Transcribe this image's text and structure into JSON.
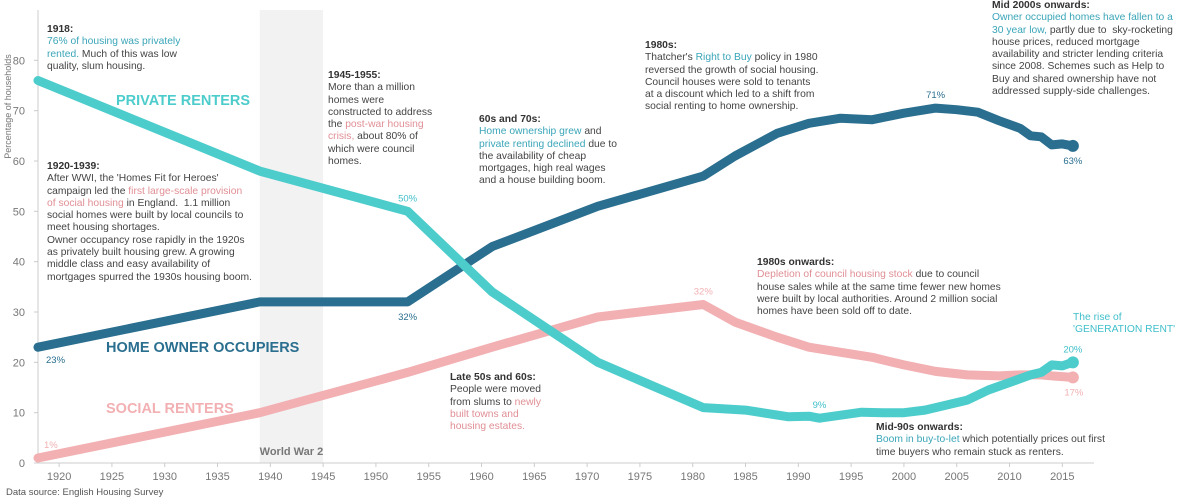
{
  "chart_data": {
    "type": "line",
    "ylabel": "Percentage of households",
    "xlim": [
      1918,
      2018
    ],
    "ylim": [
      0,
      90
    ],
    "xticks": [
      1920,
      1925,
      1930,
      1935,
      1940,
      1945,
      1950,
      1955,
      1960,
      1965,
      1970,
      1975,
      1980,
      1985,
      1990,
      1995,
      2000,
      2005,
      2010,
      2015
    ],
    "yticks": [
      0,
      10,
      20,
      30,
      40,
      50,
      60,
      70,
      80
    ],
    "shaded_period": {
      "from": 1939,
      "to": 1945,
      "label": "World War 2"
    },
    "series": [
      {
        "name": "PRIVATE RENTERS",
        "color": "#4dcccc",
        "points": [
          [
            1918,
            76
          ],
          [
            1939,
            58
          ],
          [
            1953,
            50
          ],
          [
            1961,
            34
          ],
          [
            1971,
            20
          ],
          [
            1981,
            11
          ],
          [
            1985,
            10.5
          ],
          [
            1989,
            9.2
          ],
          [
            1991,
            9.3
          ],
          [
            1992,
            8.9
          ],
          [
            1994,
            9.5
          ],
          [
            1996,
            10.1
          ],
          [
            1998,
            10
          ],
          [
            2000,
            10
          ],
          [
            2002,
            10.5
          ],
          [
            2004,
            11.5
          ],
          [
            2006,
            12.5
          ],
          [
            2008,
            14.5
          ],
          [
            2010,
            16
          ],
          [
            2012,
            17.5
          ],
          [
            2013,
            18
          ],
          [
            2014,
            19.5
          ],
          [
            2015,
            19.3
          ],
          [
            2016,
            20
          ]
        ],
        "start_label": "",
        "end_label": "20%",
        "marked": [
          {
            "x": 1953,
            "y": 50,
            "label": "50%"
          },
          {
            "x": 1992,
            "y": 8.9,
            "label": "9%"
          }
        ]
      },
      {
        "name": "HOME OWNER OCCUPIERS",
        "color": "#2a6f8f",
        "points": [
          [
            1918,
            23
          ],
          [
            1939,
            32
          ],
          [
            1953,
            32
          ],
          [
            1961,
            43
          ],
          [
            1971,
            51
          ],
          [
            1981,
            57
          ],
          [
            1984,
            61
          ],
          [
            1988,
            65.5
          ],
          [
            1991,
            67.5
          ],
          [
            1994,
            68.5
          ],
          [
            1997,
            68.2
          ],
          [
            2000,
            69.5
          ],
          [
            2003,
            70.5
          ],
          [
            2005,
            70.2
          ],
          [
            2007,
            69.7
          ],
          [
            2009,
            68
          ],
          [
            2011,
            66.5
          ],
          [
            2012,
            65
          ],
          [
            2013,
            64.8
          ],
          [
            2014,
            63.2
          ],
          [
            2015,
            63.4
          ],
          [
            2016,
            63
          ]
        ],
        "start_label": "23%",
        "end_label": "63%",
        "marked": [
          {
            "x": 1953,
            "y": 32,
            "label": "32%"
          },
          {
            "x": 2003,
            "y": 70.5,
            "label": "71%"
          }
        ]
      },
      {
        "name": "SOCIAL RENTERS",
        "color": "#f2b0b3",
        "points": [
          [
            1918,
            1
          ],
          [
            1939,
            10
          ],
          [
            1953,
            18
          ],
          [
            1961,
            23
          ],
          [
            1971,
            29
          ],
          [
            1981,
            31.5
          ],
          [
            1984,
            28
          ],
          [
            1988,
            25
          ],
          [
            1991,
            23
          ],
          [
            1994,
            22
          ],
          [
            1997,
            21
          ],
          [
            2000,
            19.5
          ],
          [
            2003,
            18.2
          ],
          [
            2006,
            17.5
          ],
          [
            2009,
            17.3
          ],
          [
            2011,
            17.5
          ],
          [
            2013,
            17.5
          ],
          [
            2014,
            17.3
          ],
          [
            2016,
            17
          ]
        ],
        "start_label": "1%",
        "end_label": "17%",
        "marked": [
          {
            "x": 1981,
            "y": 31.5,
            "label": "32%"
          }
        ]
      }
    ]
  },
  "annotations": {
    "a1918": {
      "title": "1918:",
      "l1a": "76% of housing was privately",
      "l2a": "rented.",
      "l2b": " Much of this was low",
      "l3": "quality, slum housing."
    },
    "a1920": {
      "title": "1920-1939:",
      "l1": "After WWI, the 'Homes Fit for Heroes'",
      "l2a": "campaign led the ",
      "l2b": "first large-scale provision",
      "l3a": "of social housing",
      "l3b": " in England.  1.1 million",
      "l4": "social homes were built by local councils  to",
      "l5": "meet housing shortages.",
      "l6": "Owner occupancy rose rapidly in the 1920s",
      "l7": "as privately built housing grew. A growing",
      "l8": "middle class and easy availability of",
      "l9": "mortgages spurred the 1930s housing boom."
    },
    "a1945": {
      "title": "1945-1955:",
      "l1": "More than a million",
      "l2": "homes were",
      "l3": "constructed to address",
      "l4a": "the ",
      "l4b": "post-war housing",
      "l5a": "crisis,",
      "l5b": " about 80% of",
      "l6": "which were council",
      "l7": "homes."
    },
    "a60s": {
      "title": "60s and 70s:",
      "l1a": "Home ownership grew",
      "l1b": " and",
      "l2a": "private renting declined",
      "l2b": " due to",
      "l3": "the availability of cheap",
      "l4": "mortgages, high real wages",
      "l5": "and a house building boom."
    },
    "a1980": {
      "title": "1980s:",
      "l1a": "Thatcher's ",
      "l1b": "Right to Buy",
      "l1c": " policy in 1980",
      "l2": "reversed the growth of social housing.",
      "l3": "Council houses were sold to tenants",
      "l4": "at a discount which led to a shift from",
      "l5": "social renting to home ownership."
    },
    "a2000": {
      "title": "Mid 2000s onwards:",
      "l1": "Owner occupied homes have fallen to a",
      "l2a": "30 year low,",
      "l2b": " partly due to  sky-rocketing",
      "l3": "house prices, reduced mortgage",
      "l4": "availability and stricter lending criteria",
      "l5": "since 2008.  Schemes such as Help to",
      "l6": "Buy  and shared ownership have not",
      "l7": "addressed supply-side challenges."
    },
    "a1980on": {
      "title": "1980s onwards:",
      "l1a": "Depletion of council housing stock",
      "l1b": " due to council",
      "l2": "house sales while at the same time fewer new homes",
      "l3": "were built by local authorities. Around 2 million social",
      "l4": "homes have been sold off to date."
    },
    "a50s": {
      "title": "Late  50s and 60s:",
      "l1": "People were moved",
      "l2a": "from slums to ",
      "l2b": "newly",
      "l3": "built towns and",
      "l4": "housing estates."
    },
    "a90s": {
      "title": "Mid-90s onwards:",
      "l1a": "Boom in buy-to-let",
      "l1b": " which potentially prices out first",
      "l2": "time buyers who remain stuck as renters."
    },
    "genrent": {
      "l1": "The rise of",
      "l2": "'GENERATION RENT'"
    }
  },
  "source": "Data source: English Housing Survey"
}
